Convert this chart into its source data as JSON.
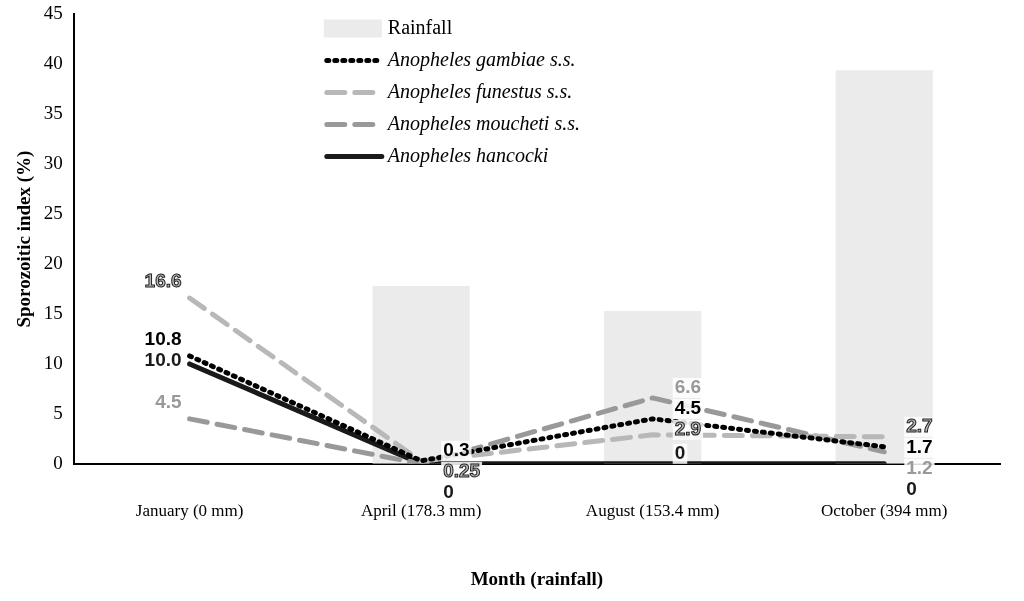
{
  "chart_data": {
    "type": "line",
    "xlabel": "Month (rainfall)",
    "ylabel": "Sporozoitic index (%)",
    "categories": [
      "January (0 mm)",
      "April (178.3 mm)",
      "August (153.4 mm)",
      "October (394 mm)"
    ],
    "ylim": [
      0,
      45
    ],
    "yticks": [
      0,
      5,
      10,
      15,
      20,
      25,
      30,
      35,
      40,
      45
    ],
    "grid": false,
    "legend": "top",
    "marker": "none",
    "series": [
      {
        "name": "Rainfall",
        "type": "bar",
        "color": "#ebebeb",
        "values": [
          0,
          17.8,
          15.3,
          39.4
        ]
      },
      {
        "name": "Anopheles gambiae s.s.",
        "line_style": "dotted",
        "color": "#000000",
        "values": [
          10.8,
          0.3,
          4.5,
          1.7
        ],
        "value_labels": [
          "10.8",
          "0.3",
          "4.5",
          "1.7"
        ]
      },
      {
        "name": "Anopheles funestus s.s.",
        "line_style": "dashed",
        "color": "#b8b8b8",
        "values": [
          16.6,
          0.25,
          2.9,
          2.7
        ],
        "value_labels": [
          "16.6",
          "0.25",
          "2.9",
          "2.7"
        ]
      },
      {
        "name": "Anopheles moucheti s.s.",
        "line_style": "dashed",
        "color": "#999999",
        "values": [
          4.5,
          0,
          6.6,
          1.2
        ],
        "value_labels": [
          "4.5",
          null,
          "6.6",
          "1.2"
        ]
      },
      {
        "name": "Anopheles hancocki",
        "line_style": "solid",
        "color": "#1a1a1a",
        "values": [
          10.0,
          0,
          0,
          0
        ],
        "value_labels": [
          "10.0",
          "0",
          "0",
          "0"
        ]
      }
    ]
  }
}
